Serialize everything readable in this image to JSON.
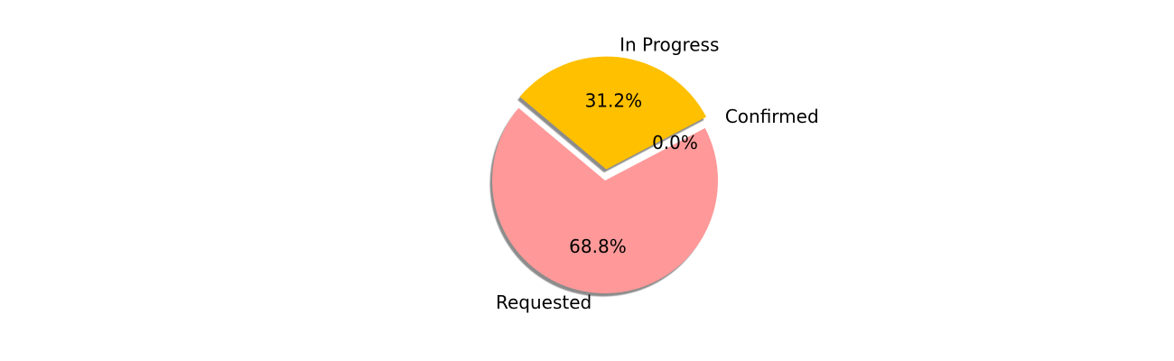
{
  "chart_data": {
    "type": "pie",
    "title": "",
    "slices": [
      {
        "label": "Requested",
        "value": 68.8,
        "pct_label": "68.8%",
        "color": "#ff9999",
        "explode": false
      },
      {
        "label": "Confirmed",
        "value": 0.0,
        "pct_label": "0.0%",
        "color": "#66b3ff",
        "explode": true
      },
      {
        "label": "In Progress",
        "value": 31.2,
        "pct_label": "31.2%",
        "color": "#ffc000",
        "explode": true
      }
    ],
    "start_angle_deg": 140,
    "shadow": true,
    "legend": "none"
  }
}
